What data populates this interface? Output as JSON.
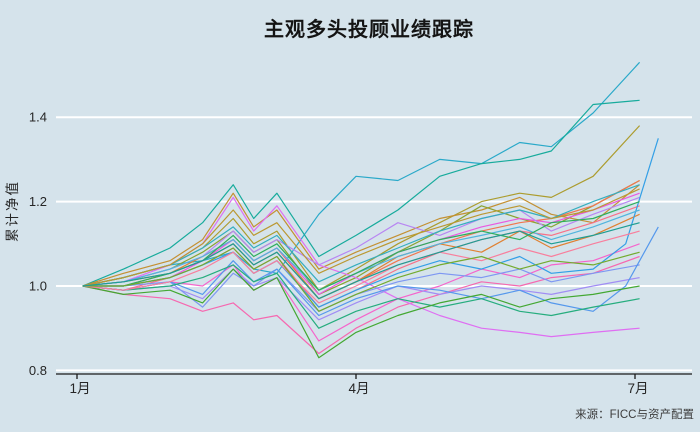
{
  "title": "主观多头投顾业绩跟踪",
  "source_note": "来源：FICC与资产配置",
  "colors": {
    "background": "#d5e3eb",
    "gridline": "#ffffff",
    "axis_line": "#1a1a1a",
    "tick_text": "#262626",
    "title_text": "#141414",
    "source_text": "#3d3d3d"
  },
  "chart_data": {
    "type": "line",
    "title": "主观多头投顾业绩跟踪",
    "xlabel": "",
    "ylabel": "累计净值",
    "legend": "none",
    "grid": "horizontal white gridlines on light blue panel",
    "x_unit": "months since 1月 (0 = 1月, 3 = 4月, 6 = 7月)",
    "xlim": [
      -0.3,
      6.6
    ],
    "ylim": [
      0.78,
      1.56
    ],
    "x_ticks": [
      {
        "m": 0,
        "label": "1月"
      },
      {
        "m": 3,
        "label": "4月"
      },
      {
        "m": 6,
        "label": "7月"
      }
    ],
    "y_ticks": [
      {
        "v": 0.8,
        "label": "0.8"
      },
      {
        "v": 1.0,
        "label": "1.0"
      },
      {
        "v": 1.2,
        "label": "1.2"
      },
      {
        "v": 1.4,
        "label": "1.4"
      }
    ],
    "default_x": [
      0.06,
      0.5,
      1.0,
      1.35,
      1.68,
      1.9,
      2.15,
      2.6,
      3.0,
      3.45,
      3.9,
      4.35,
      4.76,
      5.1,
      5.55,
      6.05
    ],
    "series": [
      {
        "name": "sky-cyan-top",
        "color": "#2aa9c9",
        "y": [
          1.0,
          1.02,
          1.05,
          1.06,
          1.08,
          1.04,
          1.03,
          1.17,
          1.26,
          1.25,
          1.3,
          1.29,
          1.34,
          1.33,
          1.41,
          1.53
        ]
      },
      {
        "name": "teal",
        "color": "#17ab9c",
        "y": [
          1.0,
          1.04,
          1.09,
          1.15,
          1.24,
          1.16,
          1.22,
          1.07,
          1.12,
          1.18,
          1.26,
          1.29,
          1.3,
          1.32,
          1.43,
          1.44
        ]
      },
      {
        "name": "olive",
        "color": "#ac9c2e",
        "y": [
          1.0,
          1.02,
          1.05,
          1.09,
          1.16,
          1.1,
          1.13,
          0.99,
          1.04,
          1.1,
          1.15,
          1.2,
          1.22,
          1.21,
          1.26,
          1.38
        ]
      },
      {
        "name": "mustard",
        "color": "#c49032",
        "y": [
          1.0,
          1.03,
          1.06,
          1.11,
          1.22,
          1.14,
          1.18,
          1.04,
          1.08,
          1.12,
          1.16,
          1.18,
          1.21,
          1.17,
          1.15,
          1.24
        ]
      },
      {
        "name": "yellow-green",
        "color": "#8aa331",
        "y": [
          1.0,
          1.01,
          1.04,
          1.08,
          1.13,
          1.08,
          1.11,
          0.98,
          1.02,
          1.08,
          1.13,
          1.19,
          1.16,
          1.14,
          1.19,
          1.25
        ]
      },
      {
        "name": "orange",
        "color": "#e08132",
        "y": [
          1.0,
          1.01,
          1.03,
          1.07,
          1.11,
          1.06,
          1.09,
          0.97,
          1.01,
          1.07,
          1.1,
          1.08,
          1.13,
          1.09,
          1.12,
          1.17
        ]
      },
      {
        "name": "salmon",
        "color": "#f77189",
        "y": [
          1.0,
          0.99,
          1.02,
          1.05,
          1.09,
          1.04,
          1.07,
          0.95,
          0.99,
          1.04,
          1.08,
          1.11,
          1.13,
          1.12,
          1.15,
          1.19
        ]
      },
      {
        "name": "coral",
        "color": "#f0764f",
        "y": [
          1.0,
          1.0,
          1.03,
          1.06,
          1.1,
          1.05,
          1.08,
          0.97,
          1.01,
          1.06,
          1.1,
          1.13,
          1.15,
          1.16,
          1.19,
          1.25
        ]
      },
      {
        "name": "hot-pink",
        "color": "#f668b0",
        "y": [
          1.0,
          0.98,
          0.97,
          0.94,
          0.96,
          0.92,
          0.93,
          0.84,
          0.9,
          0.95,
          0.98,
          1.01,
          1.0,
          1.02,
          1.03,
          1.07
        ]
      },
      {
        "name": "pink",
        "color": "#f565cc",
        "y": [
          1.0,
          0.99,
          1.01,
          1.0,
          1.05,
          0.99,
          1.02,
          0.87,
          0.92,
          0.97,
          1.0,
          1.04,
          1.02,
          1.05,
          1.06,
          1.1
        ]
      },
      {
        "name": "magenta",
        "color": "#e95ae0",
        "y": [
          1.0,
          1.0,
          1.02,
          1.06,
          1.11,
          1.06,
          1.09,
          0.98,
          1.03,
          1.08,
          1.11,
          1.14,
          1.16,
          1.15,
          1.18,
          1.22
        ]
      },
      {
        "name": "orchid-decliner",
        "color": "#df6ef2",
        "y": [
          1.0,
          1.01,
          1.05,
          1.1,
          1.21,
          1.13,
          1.19,
          1.05,
          1.02,
          0.97,
          0.93,
          0.9,
          0.89,
          0.88,
          0.89,
          0.9
        ]
      },
      {
        "name": "violet",
        "color": "#b886f2",
        "y": [
          1.0,
          1.01,
          1.04,
          1.07,
          1.13,
          1.08,
          1.11,
          1.05,
          1.09,
          1.15,
          1.12,
          1.16,
          1.18,
          1.13,
          1.17,
          1.21
        ]
      },
      {
        "name": "lavender",
        "color": "#a18df4",
        "y": [
          1.0,
          0.99,
          1.0,
          0.97,
          1.04,
          1.0,
          1.02,
          0.92,
          0.96,
          1.0,
          0.98,
          1.0,
          0.99,
          0.98,
          1.0,
          1.02
        ]
      },
      {
        "name": "periwinkle",
        "color": "#7e97f2",
        "y": [
          1.0,
          1.0,
          1.01,
          0.95,
          1.03,
          1.0,
          1.04,
          0.94,
          0.98,
          1.01,
          1.03,
          1.02,
          1.04,
          1.01,
          1.03,
          1.05
        ]
      },
      {
        "name": "blue-late-spike",
        "color": "#339fe6",
        "x": [
          0.06,
          0.5,
          1.0,
          1.35,
          1.68,
          1.9,
          2.15,
          2.6,
          3.0,
          3.45,
          3.9,
          4.35,
          4.76,
          5.1,
          5.55,
          5.9,
          6.25
        ],
        "y": [
          1.0,
          1.0,
          1.02,
          1.05,
          1.08,
          1.03,
          1.06,
          0.95,
          0.99,
          1.03,
          1.06,
          1.04,
          1.07,
          1.03,
          1.04,
          1.1,
          1.35
        ]
      },
      {
        "name": "blue2-late-spike",
        "color": "#5598ec",
        "x": [
          0.06,
          0.5,
          1.0,
          1.35,
          1.68,
          1.9,
          2.15,
          2.6,
          3.0,
          3.45,
          3.9,
          4.35,
          4.76,
          5.1,
          5.55,
          5.9,
          6.25
        ],
        "y": [
          1.0,
          0.99,
          1.01,
          0.98,
          1.06,
          1.01,
          1.04,
          0.93,
          0.97,
          1.0,
          0.99,
          0.97,
          0.99,
          0.96,
          0.94,
          1.0,
          1.14
        ]
      },
      {
        "name": "cyan2",
        "color": "#35aebe",
        "y": [
          1.0,
          1.02,
          1.05,
          1.09,
          1.14,
          1.09,
          1.12,
          1.01,
          1.05,
          1.09,
          1.13,
          1.16,
          1.18,
          1.16,
          1.2,
          1.24
        ]
      },
      {
        "name": "sky",
        "color": "#52b4dd",
        "y": [
          1.0,
          1.01,
          1.04,
          1.07,
          1.11,
          1.06,
          1.09,
          0.99,
          1.03,
          1.07,
          1.1,
          1.12,
          1.14,
          1.11,
          1.14,
          1.18
        ]
      },
      {
        "name": "sea-green",
        "color": "#26ad7e",
        "y": [
          1.0,
          0.99,
          1.0,
          1.02,
          1.05,
          1.01,
          1.03,
          0.9,
          0.94,
          0.97,
          0.95,
          0.97,
          0.94,
          0.93,
          0.95,
          0.97
        ]
      },
      {
        "name": "green",
        "color": "#43a832",
        "y": [
          1.0,
          0.98,
          0.99,
          0.96,
          1.04,
          0.99,
          1.02,
          0.83,
          0.89,
          0.93,
          0.96,
          0.98,
          0.95,
          0.97,
          0.98,
          1.0
        ]
      },
      {
        "name": "green2",
        "color": "#2fae5d",
        "y": [
          1.0,
          1.0,
          1.03,
          1.06,
          1.12,
          1.07,
          1.1,
          0.99,
          1.03,
          1.08,
          1.11,
          1.13,
          1.11,
          1.15,
          1.16,
          1.2
        ]
      },
      {
        "name": "olive2",
        "color": "#bb9832",
        "y": [
          1.0,
          1.02,
          1.05,
          1.1,
          1.18,
          1.12,
          1.15,
          1.03,
          1.07,
          1.11,
          1.14,
          1.17,
          1.19,
          1.16,
          1.18,
          1.23
        ]
      },
      {
        "name": "rose",
        "color": "#f87f9d",
        "y": [
          1.0,
          0.99,
          1.01,
          1.04,
          1.08,
          1.03,
          1.06,
          0.96,
          1.0,
          1.05,
          1.08,
          1.06,
          1.09,
          1.07,
          1.1,
          1.13
        ]
      },
      {
        "name": "leaf",
        "color": "#73ab2f",
        "y": [
          1.0,
          1.0,
          1.02,
          1.05,
          1.09,
          1.04,
          1.07,
          0.94,
          0.98,
          1.02,
          1.05,
          1.07,
          1.04,
          1.06,
          1.05,
          1.08
        ]
      },
      {
        "name": "dark-teal",
        "color": "#1f9e93",
        "y": [
          1.0,
          1.01,
          1.03,
          1.06,
          1.1,
          1.05,
          1.08,
          0.97,
          1.01,
          1.05,
          1.08,
          1.11,
          1.13,
          1.1,
          1.12,
          1.15
        ]
      }
    ]
  }
}
